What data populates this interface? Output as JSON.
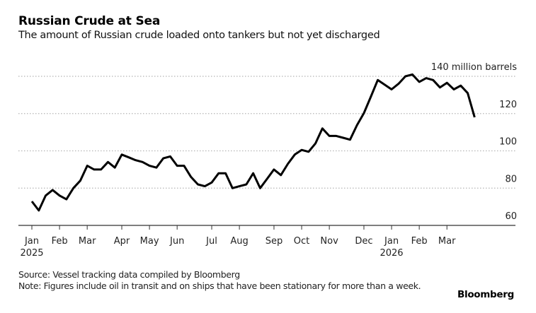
{
  "chart_data": {
    "type": "line",
    "title": "Russian Crude at Sea",
    "subtitle": "The amount of Russian crude loaded onto tankers but not yet discharged",
    "ylabel": "million barrels",
    "unit_label": "140 million barrels",
    "ylim": [
      60,
      140
    ],
    "yticks": [
      {
        "value": 140,
        "label": "140 million barrels"
      },
      {
        "value": 120,
        "label": "120"
      },
      {
        "value": 100,
        "label": "100"
      },
      {
        "value": 80,
        "label": "80"
      },
      {
        "value": 60,
        "label": "60"
      }
    ],
    "grid": "horizontal-dotted",
    "xticks": [
      {
        "week": 0,
        "label": "Jan",
        "year": "2025"
      },
      {
        "week": 4,
        "label": "Feb"
      },
      {
        "week": 8,
        "label": "Mar"
      },
      {
        "week": 13,
        "label": "Apr"
      },
      {
        "week": 17,
        "label": "May"
      },
      {
        "week": 21,
        "label": "Jun"
      },
      {
        "week": 26,
        "label": "Jul"
      },
      {
        "week": 30,
        "label": "Aug"
      },
      {
        "week": 35,
        "label": "Sep"
      },
      {
        "week": 39,
        "label": "Oct"
      },
      {
        "week": 43,
        "label": "Nov"
      },
      {
        "week": 48,
        "label": "Dec"
      },
      {
        "week": 52,
        "label": "Jan",
        "year": "2026"
      },
      {
        "week": 56,
        "label": "Feb"
      },
      {
        "week": 60,
        "label": "Mar"
      }
    ],
    "x_max_week": 70,
    "series": [
      {
        "name": "Russian crude at sea",
        "color": "#000000",
        "values": [
          72.9,
          68,
          76,
          79,
          76,
          74,
          80,
          84,
          92,
          90,
          90,
          94,
          91,
          98,
          96.5,
          95,
          94,
          92,
          91,
          96,
          97,
          92,
          92,
          86,
          82,
          81,
          83,
          88,
          88,
          80,
          81,
          82,
          88,
          80,
          85,
          90,
          87,
          93,
          98,
          100.5,
          99.5,
          104,
          112,
          108,
          108,
          107,
          106,
          113.8,
          120.3,
          129,
          138,
          135.5,
          133,
          136,
          140,
          141,
          137,
          139,
          138,
          134,
          136.5,
          133,
          135,
          131,
          118
        ]
      }
    ]
  },
  "footer": {
    "source": "Source: Vessel tracking data compiled by Bloomberg",
    "note": "Note: Figures include oil in transit and on ships that have been stationary for more than a week.",
    "brand": "Bloomberg"
  },
  "colors": {
    "line": "#000000",
    "grid": "#b5b5b5",
    "axis": "#333333"
  }
}
